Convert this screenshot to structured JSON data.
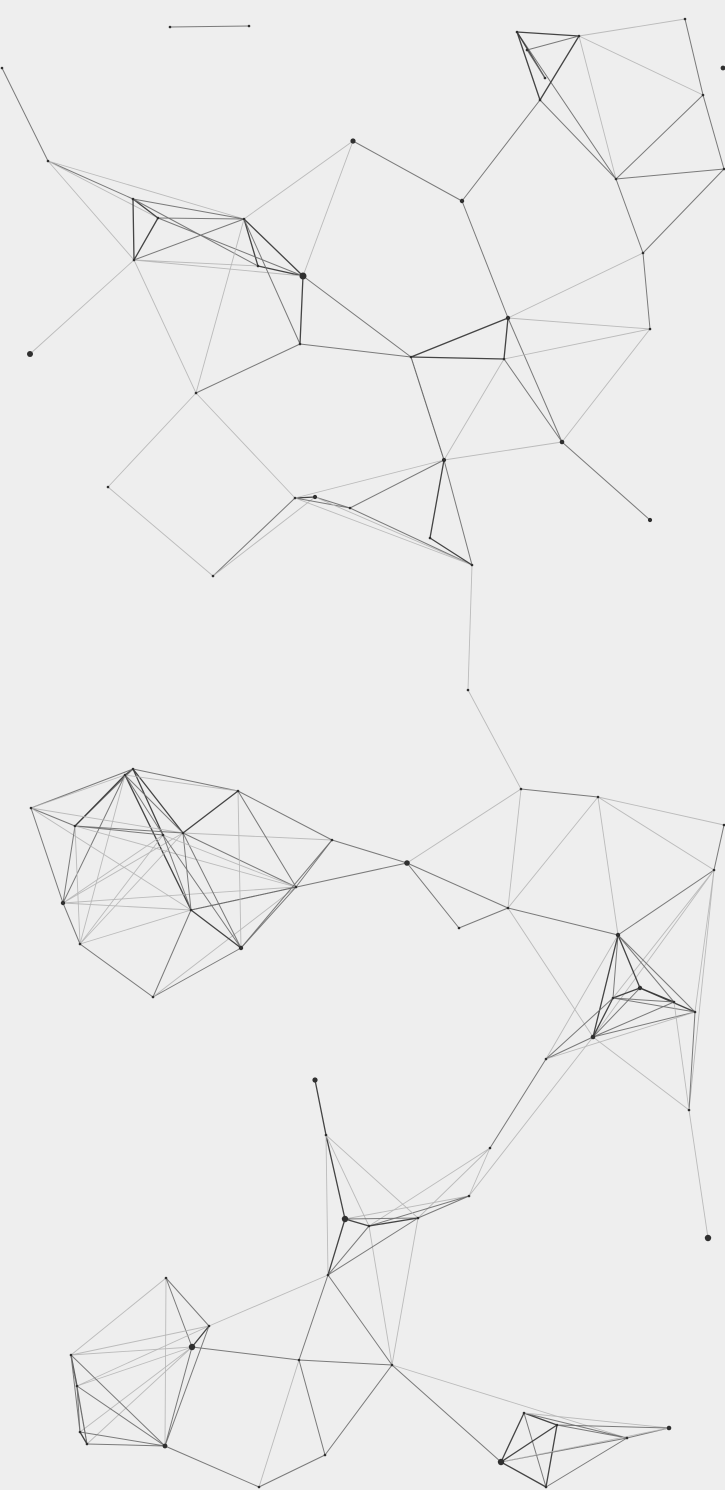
{
  "diagram": {
    "type": "network-graph",
    "labels_visible": false,
    "colors": {
      "background": "#eeeeee",
      "edge_strong": "#3a3a3a",
      "edge_medium": "#6d6d6d",
      "edge_light": "#b5b5b5",
      "node": "#2f2f2f"
    },
    "edge_count": 0,
    "node_count": 0
  }
}
